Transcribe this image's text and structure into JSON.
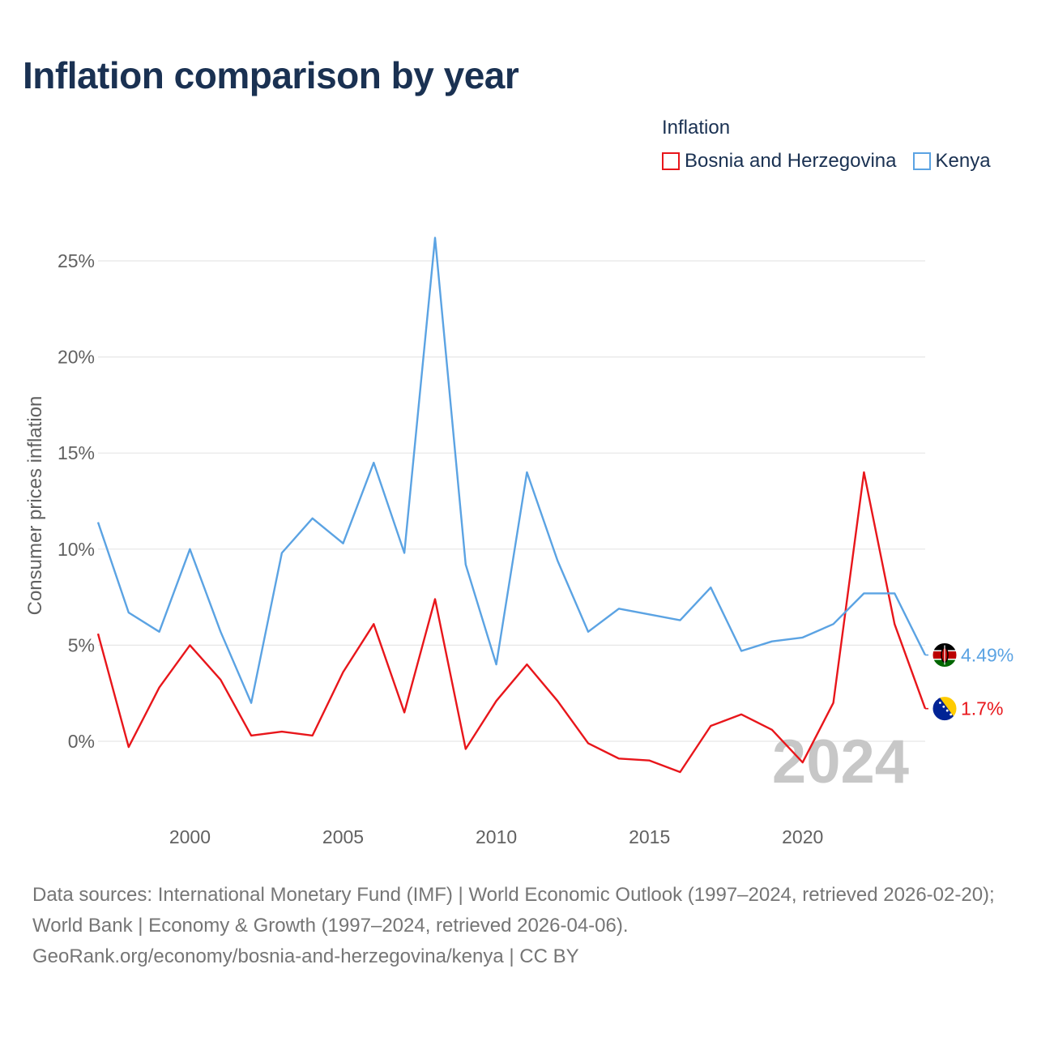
{
  "header": {
    "title": "Inflation comparison by year"
  },
  "legend": {
    "title": "Inflation",
    "items": [
      {
        "label": "Bosnia and Herzegovina",
        "color": "#e8161b"
      },
      {
        "label": "Kenya",
        "color": "#5ba3e3"
      }
    ]
  },
  "colors": {
    "text": "#1a3152",
    "axis": "#616161",
    "grid": "#e6e6e6",
    "watermark": "#c7c7c7"
  },
  "footer": {
    "line1": "Data sources: International Monetary Fund (IMF) | World Economic Outlook (1997–2024, retrieved 2026-02-20); World Bank | Economy & Growth (1997–2024, retrieved 2026-04-06).",
    "line2": "GeoRank.org/economy/bosnia-and-herzegovina/kenya | CC BY"
  },
  "chart_data": {
    "type": "line",
    "title": "Inflation comparison by year",
    "xlabel": "",
    "ylabel": "Consumer prices inflation",
    "watermark": "2024",
    "xlim": [
      1997,
      2024
    ],
    "ylim": [
      -4,
      27
    ],
    "x_ticks": [
      2000,
      2005,
      2010,
      2015,
      2020
    ],
    "y_ticks": [
      0,
      5,
      10,
      15,
      20,
      25
    ],
    "y_tick_labels": [
      "0%",
      "5%",
      "10%",
      "15%",
      "20%",
      "25%"
    ],
    "grid": true,
    "legend_position": "top-right",
    "x": [
      1997,
      1998,
      1999,
      2000,
      2001,
      2002,
      2003,
      2004,
      2005,
      2006,
      2007,
      2008,
      2009,
      2010,
      2011,
      2012,
      2013,
      2014,
      2015,
      2016,
      2017,
      2018,
      2019,
      2020,
      2021,
      2022,
      2023,
      2024
    ],
    "series": [
      {
        "name": "Bosnia and Herzegovina",
        "color": "#e8161b",
        "end_label": "1.7%",
        "values": [
          5.6,
          -0.3,
          2.8,
          5.0,
          3.2,
          0.3,
          0.5,
          0.3,
          3.6,
          6.1,
          1.5,
          7.4,
          -0.4,
          2.1,
          4.0,
          2.1,
          -0.1,
          -0.9,
          -1.0,
          -1.6,
          0.8,
          1.4,
          0.6,
          -1.1,
          2.0,
          14.0,
          6.1,
          1.7
        ]
      },
      {
        "name": "Kenya",
        "color": "#5ba3e3",
        "end_label": "4.49%",
        "values": [
          11.4,
          6.7,
          5.7,
          10.0,
          5.7,
          2.0,
          9.8,
          11.6,
          10.3,
          14.5,
          9.8,
          26.2,
          9.2,
          4.0,
          14.0,
          9.4,
          5.7,
          6.9,
          6.6,
          6.3,
          8.0,
          4.7,
          5.2,
          5.4,
          6.1,
          7.7,
          7.7,
          4.49
        ]
      }
    ]
  }
}
